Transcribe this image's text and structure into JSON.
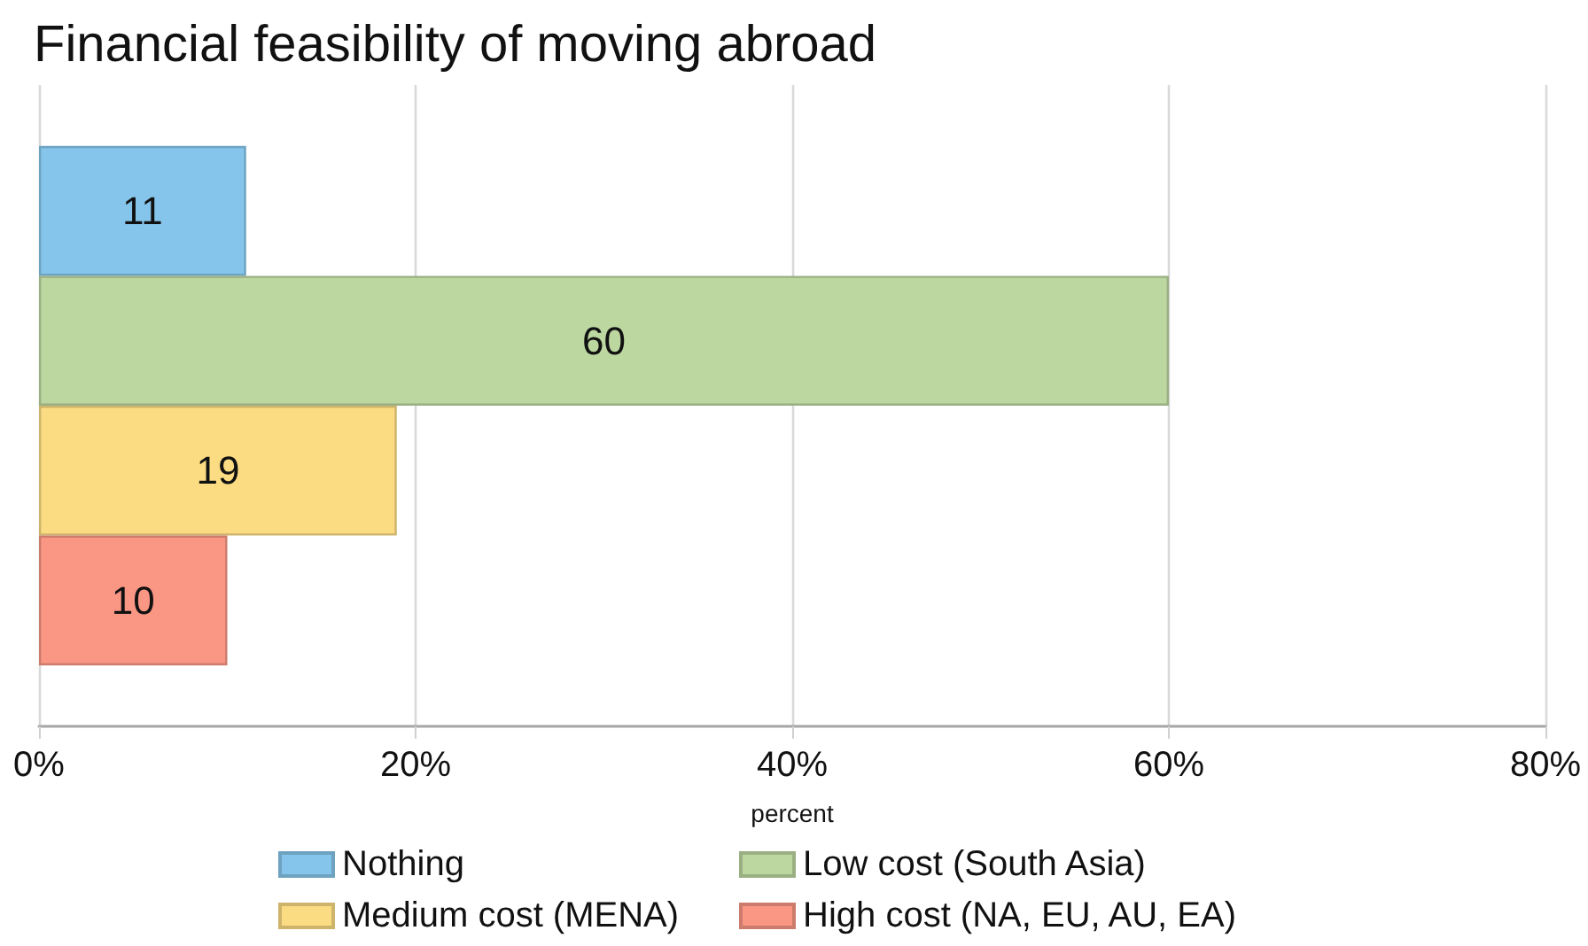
{
  "chart_data": {
    "type": "bar",
    "orientation": "horizontal",
    "title": "Financial feasibility of moving abroad",
    "xlabel": "percent",
    "categories": [
      null
    ],
    "series": [
      {
        "name": "Nothing",
        "color": "#85c5eb",
        "values": [
          11
        ]
      },
      {
        "name": "Low cost (South Asia)",
        "color": "#bcd7a0",
        "values": [
          60
        ]
      },
      {
        "name": "Medium cost (MENA)",
        "color": "#fbdc82",
        "values": [
          19
        ]
      },
      {
        "name": "High cost (NA, EU, AU, EA)",
        "color": "#fa9684",
        "values": [
          10
        ]
      }
    ],
    "xlim": [
      0,
      80
    ],
    "xticks": [
      {
        "value": 0,
        "label": "0%"
      },
      {
        "value": 20,
        "label": "20%"
      },
      {
        "value": 40,
        "label": "40%"
      },
      {
        "value": 60,
        "label": "60%"
      },
      {
        "value": 80,
        "label": "80%"
      }
    ],
    "grid": "x",
    "legend": "bottom",
    "data_labels": true
  }
}
